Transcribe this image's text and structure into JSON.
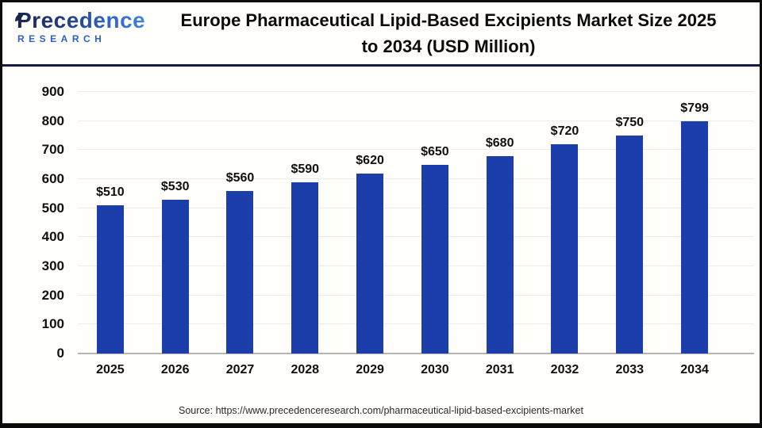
{
  "header": {
    "logo": {
      "brand": "Precedence",
      "sub": "RESEARCH"
    },
    "title_line1": "Europe Pharmaceutical Lipid-Based Excipients Market Size 2025",
    "title_line2": "to 2034 (USD Million)"
  },
  "chart_data": {
    "type": "bar",
    "title": "Europe Pharmaceutical Lipid-Based Excipients Market Size 2025 to 2034 (USD Million)",
    "categories": [
      "2025",
      "2026",
      "2027",
      "2028",
      "2029",
      "2030",
      "2031",
      "2032",
      "2033",
      "2034"
    ],
    "values": [
      510,
      530,
      560,
      590,
      620,
      650,
      680,
      720,
      750,
      799
    ],
    "value_labels": [
      "$510",
      "$530",
      "$560",
      "$590",
      "$620",
      "$650",
      "$680",
      "$720",
      "$750",
      "$799"
    ],
    "unit": "USD Million",
    "xlabel": "",
    "ylabel": "",
    "ylim": [
      0,
      900
    ],
    "ytick_step": 100,
    "grid": true,
    "legend": "none",
    "bar_color": "#1c3eab",
    "gridline_color": "#ececec",
    "axis_line_color": "#b5b5b5"
  },
  "footer": {
    "source": "Source: https://www.precedenceresearch.com/pharmaceutical-lipid-based-excipients-market"
  }
}
